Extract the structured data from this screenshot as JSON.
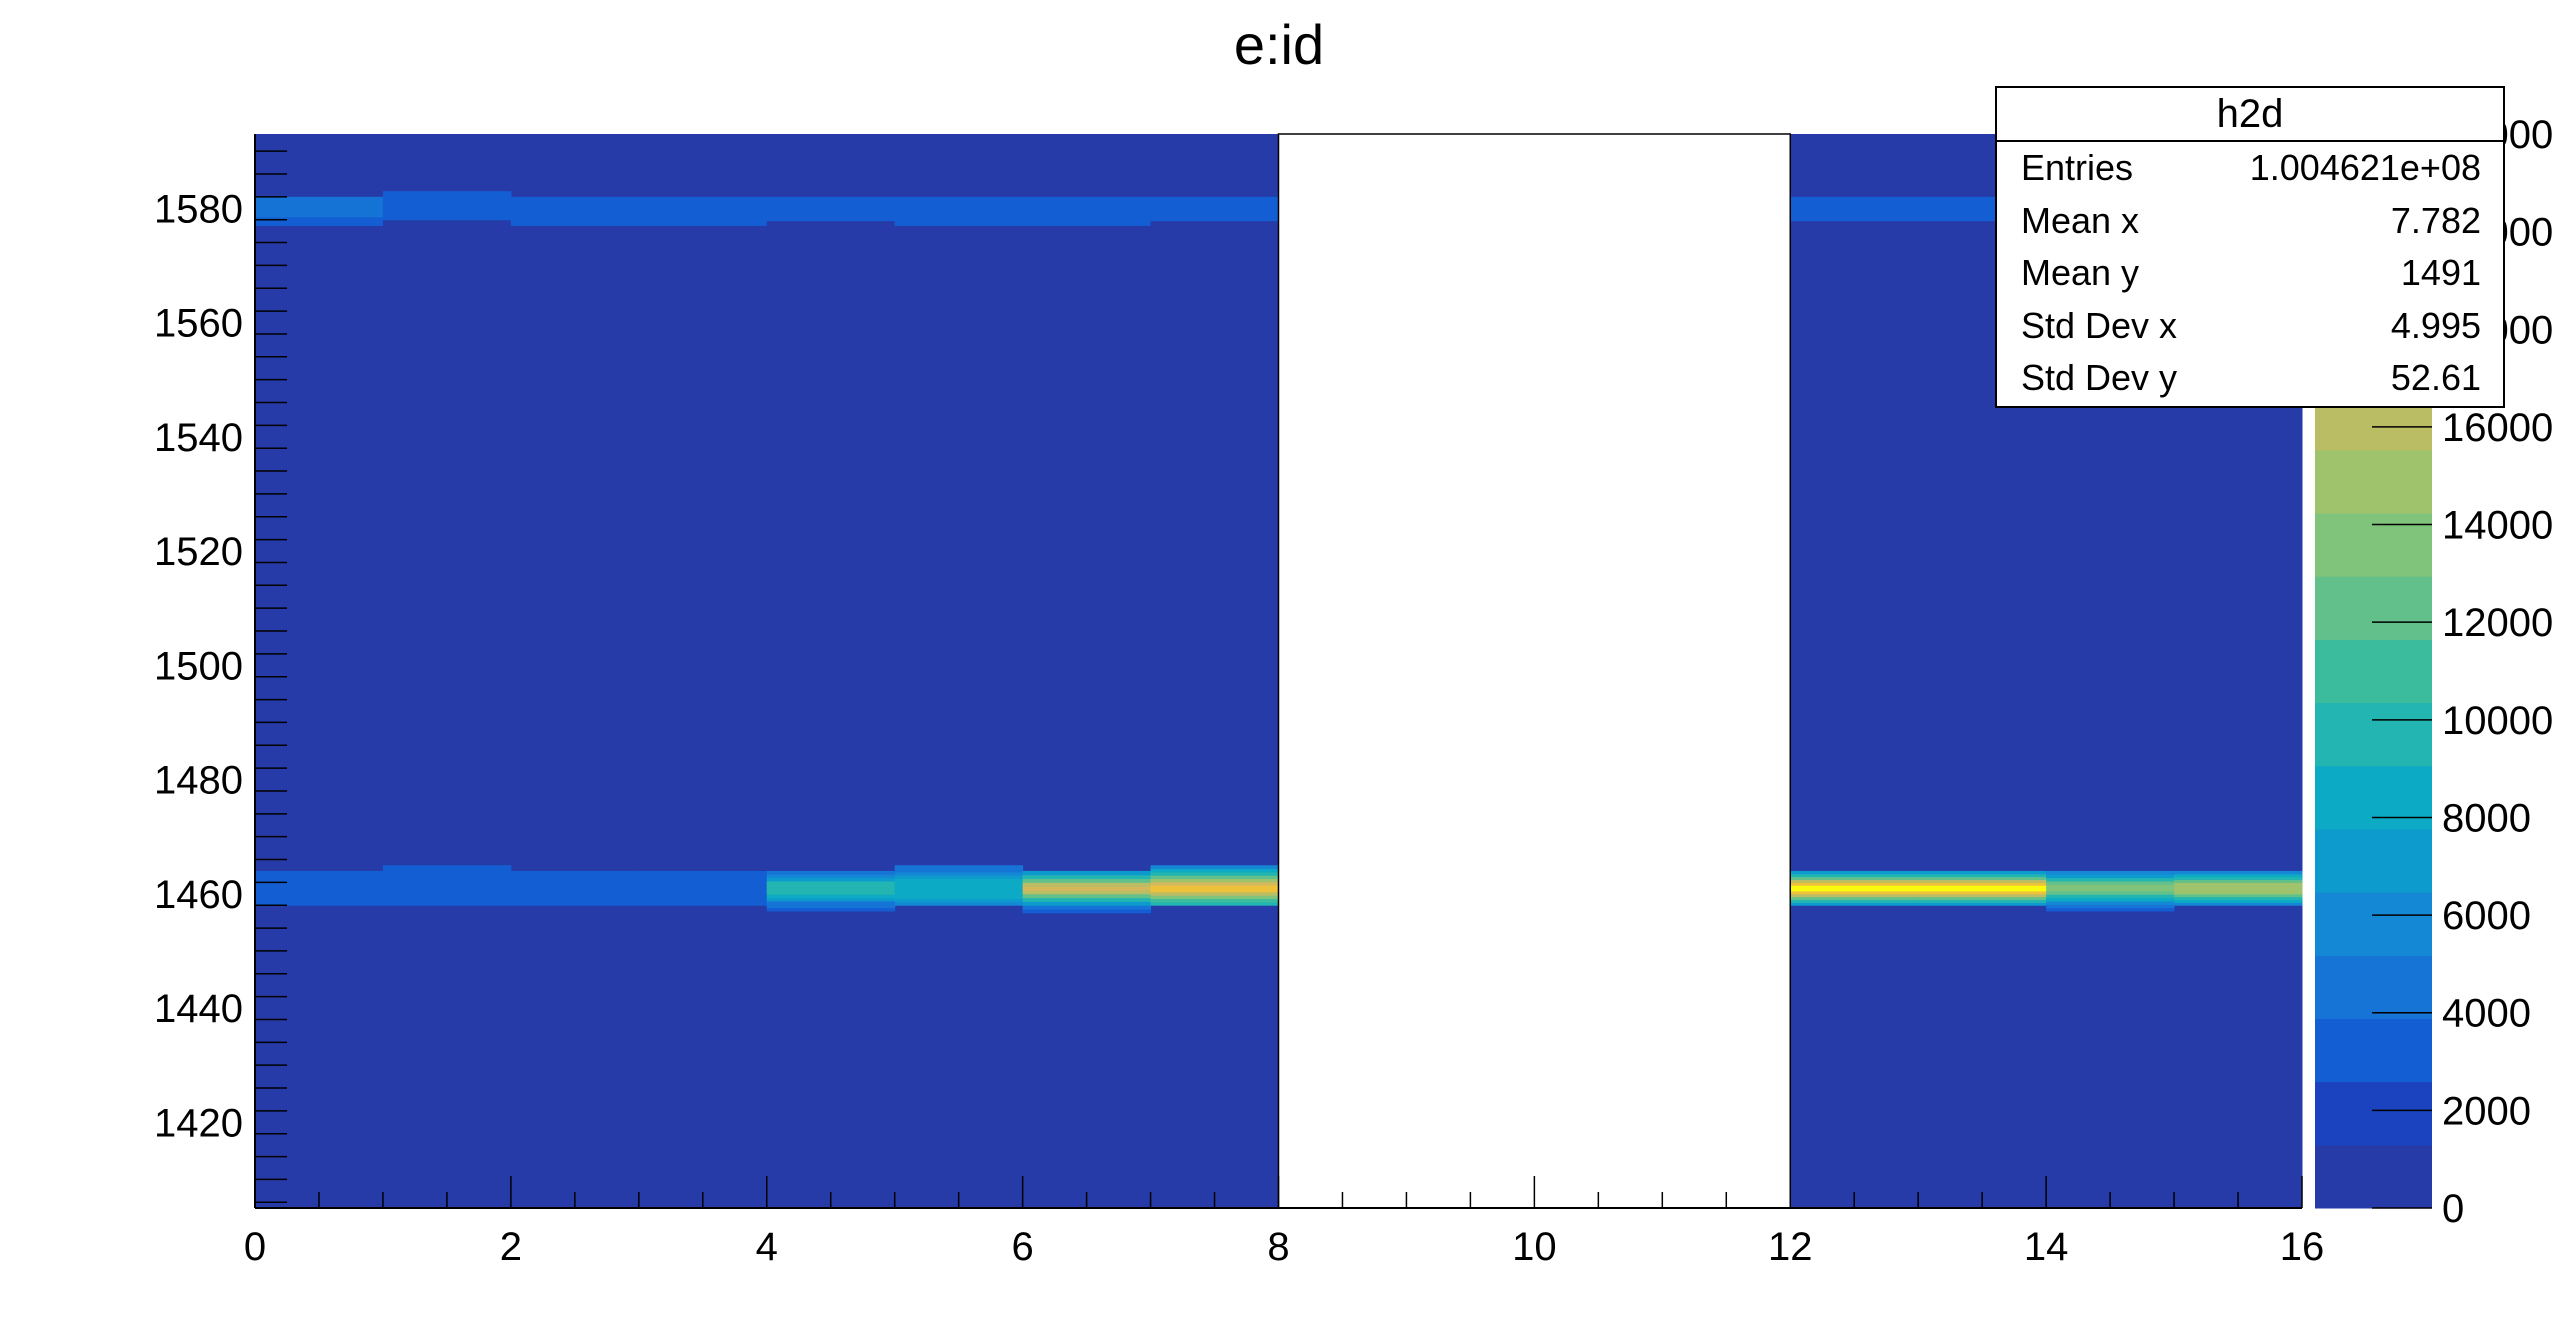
{
  "title": "e:id",
  "stats_box": {
    "name": "h2d",
    "rows": [
      {
        "label": "Entries",
        "value": "1.004621e+08"
      },
      {
        "label": "Mean x",
        "value": "7.782"
      },
      {
        "label": "Mean y",
        "value": "1491"
      },
      {
        "label": "Std Dev x",
        "value": "4.995"
      },
      {
        "label": "Std Dev y",
        "value": "52.61"
      }
    ]
  },
  "chart_data": {
    "type": "heatmap",
    "title": "e:id",
    "xlabel": "",
    "ylabel": "",
    "xlim": [
      0,
      16
    ],
    "ylim": [
      1405,
      1593
    ],
    "x_ticks": [
      "0",
      "2",
      "4",
      "6",
      "8",
      "10",
      "12",
      "14",
      "16"
    ],
    "y_ticks": [
      "1420",
      "1440",
      "1460",
      "1480",
      "1500",
      "1520",
      "1540",
      "1560",
      "1580"
    ],
    "z_ticks": [
      "0",
      "2000",
      "4000",
      "6000",
      "8000",
      "10000",
      "12000",
      "14000",
      "16000",
      "18000",
      "20000",
      "22000"
    ],
    "zlim": [
      0,
      22000
    ],
    "x_bin_width": 1,
    "empty_x_range": [
      8,
      12
    ],
    "background_level": 100,
    "bands": [
      {
        "y": 1580,
        "cells": [
          {
            "x": 0,
            "y_low": 1576,
            "y_high": 1582,
            "peak": 4000
          },
          {
            "x": 1,
            "y_low": 1577,
            "y_high": 1583,
            "peak": 3200
          },
          {
            "x": 2,
            "y_low": 1576,
            "y_high": 1582,
            "peak": 3000
          },
          {
            "x": 3,
            "y_low": 1576,
            "y_high": 1582,
            "peak": 3200
          },
          {
            "x": 4,
            "y_low": 1577,
            "y_high": 1582,
            "peak": 3200
          },
          {
            "x": 5,
            "y_low": 1576,
            "y_high": 1582,
            "peak": 3200
          },
          {
            "x": 6,
            "y_low": 1576,
            "y_high": 1582,
            "peak": 3200
          },
          {
            "x": 7,
            "y_low": 1577,
            "y_high": 1582,
            "peak": 3600
          },
          {
            "x": 12,
            "y_low": 1577,
            "y_high": 1582,
            "peak": 3200
          },
          {
            "x": 13,
            "y_low": 1577,
            "y_high": 1582,
            "peak": 3200
          },
          {
            "x": 14,
            "y_low": 1577,
            "y_high": 1582,
            "peak": 3200
          },
          {
            "x": 15,
            "y_low": 1577,
            "y_high": 1582,
            "peak": 3200
          }
        ]
      },
      {
        "y": 1460,
        "cells": [
          {
            "x": 0,
            "y_low": 1458,
            "y_high": 1464,
            "peak": 3600
          },
          {
            "x": 1,
            "y_low": 1458,
            "y_high": 1465,
            "peak": 3200
          },
          {
            "x": 2,
            "y_low": 1458,
            "y_high": 1464,
            "peak": 3200
          },
          {
            "x": 3,
            "y_low": 1458,
            "y_high": 1464,
            "peak": 3200
          },
          {
            "x": 4,
            "y_low": 1457,
            "y_high": 1464,
            "peak": 9500
          },
          {
            "x": 5,
            "y_low": 1458,
            "y_high": 1465,
            "peak": 9000
          },
          {
            "x": 6,
            "y_low": 1456,
            "y_high": 1464,
            "peak": 17500
          },
          {
            "x": 7,
            "y_low": 1458,
            "y_high": 1465,
            "peak": 18500
          },
          {
            "x": 12,
            "y_low": 1458,
            "y_high": 1464,
            "peak": 22000
          },
          {
            "x": 13,
            "y_low": 1458,
            "y_high": 1464,
            "peak": 22000
          },
          {
            "x": 14,
            "y_low": 1457,
            "y_high": 1464,
            "peak": 13500
          },
          {
            "x": 15,
            "y_low": 1458,
            "y_high": 1464,
            "peak": 15500
          }
        ]
      }
    ],
    "colorscale": [
      "#263ba8",
      "#1b43c0",
      "#145ed4",
      "#1574d6",
      "#1488d4",
      "#0d9bce",
      "#0caac4",
      "#23b5b1",
      "#3bbd9d",
      "#62c18a",
      "#80c37a",
      "#9fc36d",
      "#bbbd64",
      "#d5b75c",
      "#edc13a",
      "#fbe31a",
      "#f9fb0e"
    ]
  }
}
